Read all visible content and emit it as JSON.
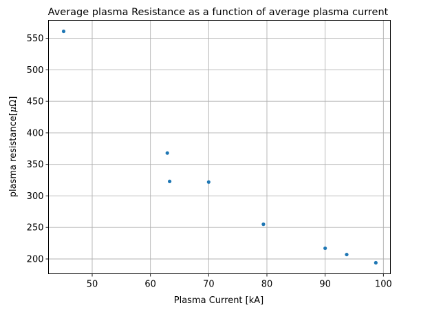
{
  "chart_data": {
    "type": "scatter",
    "title": "Average plasma Resistance as a function of average plasma current",
    "xlabel": "Plasma Current [kA]",
    "ylabel_prefix": "plasma resistance[",
    "ylabel_unit_mu": "μ",
    "ylabel_unit_omega": "Ω",
    "ylabel_suffix": "]",
    "xlim": [
      42.5,
      101.2
    ],
    "ylim": [
      176.5,
      578.5
    ],
    "xticks": [
      50,
      60,
      70,
      80,
      90,
      100
    ],
    "yticks": [
      200,
      250,
      300,
      350,
      400,
      450,
      500,
      550
    ],
    "grid": true,
    "color": "#1f77b4",
    "points": [
      {
        "x": 45.1,
        "y": 561
      },
      {
        "x": 62.9,
        "y": 368
      },
      {
        "x": 63.3,
        "y": 323
      },
      {
        "x": 70.0,
        "y": 322
      },
      {
        "x": 79.4,
        "y": 255
      },
      {
        "x": 90.0,
        "y": 217
      },
      {
        "x": 93.7,
        "y": 207
      },
      {
        "x": 98.7,
        "y": 194
      }
    ]
  }
}
